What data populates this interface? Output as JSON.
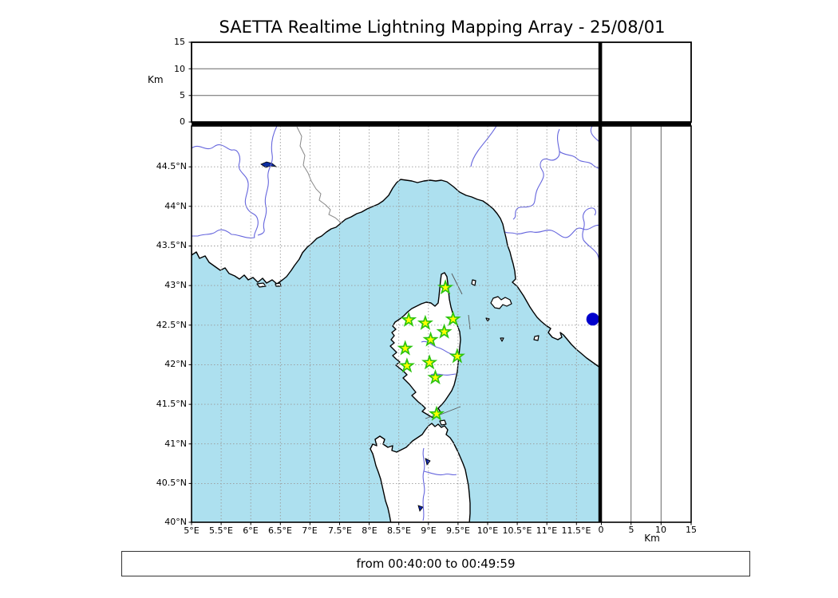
{
  "title": "SAETTA Realtime Lightning Mapping Array - 25/08/01",
  "time_label": "from 00:40:00 to 00:49:59",
  "axes": {
    "altitude_label_left": "Km",
    "altitude_label_right": "Km",
    "alt_ticks_desc": [
      "15",
      "10",
      "5",
      "0"
    ],
    "alt_ticks_asc": [
      "0",
      "5",
      "10",
      "15"
    ],
    "lon_ticks": [
      "5°E",
      "5.5°E",
      "6°E",
      "6.5°E",
      "7°E",
      "7.5°E",
      "8°E",
      "8.5°E",
      "9°E",
      "9.5°E",
      "10°E",
      "10.5°E",
      "11°E",
      "11.5°E"
    ],
    "lat_ticks": [
      "44.5°N",
      "44°N",
      "43.5°N",
      "43°N",
      "42.5°N",
      "42°N",
      "41.5°N",
      "41°N",
      "40.5°N",
      "40°N"
    ]
  },
  "chart_data": {
    "type": "scatter",
    "title": "SAETTA Realtime Lightning Mapping Array - 25/08/01",
    "time_window": "from 00:40:00 to 00:49:59",
    "layout": "map with longitude-altitude panel on top, latitude-altitude panel on right",
    "map_panel": {
      "lon_range": [
        5,
        11.9
      ],
      "lat_range": [
        40,
        45.0
      ],
      "grid_step_deg": 0.5,
      "grid_style": "dashed"
    },
    "altitude_panels": {
      "range_km": [
        0,
        15
      ],
      "gridlines_km": [
        5,
        10
      ]
    },
    "stations": [
      {
        "lon": 9.29,
        "lat": 42.97
      },
      {
        "lon": 8.67,
        "lat": 42.56
      },
      {
        "lon": 8.95,
        "lat": 42.52
      },
      {
        "lon": 9.42,
        "lat": 42.57
      },
      {
        "lon": 9.27,
        "lat": 42.41
      },
      {
        "lon": 9.04,
        "lat": 42.31
      },
      {
        "lon": 8.61,
        "lat": 42.2
      },
      {
        "lon": 9.49,
        "lat": 42.1
      },
      {
        "lon": 9.02,
        "lat": 42.02
      },
      {
        "lon": 8.64,
        "lat": 41.98
      },
      {
        "lon": 9.12,
        "lat": 41.83
      },
      {
        "lon": 9.14,
        "lat": 41.37
      }
    ],
    "events": [
      {
        "lon": 11.78,
        "lat": 42.57
      }
    ],
    "colors": {
      "sea": "#ade0ef",
      "land": "#ffffff",
      "coastline": "#000000",
      "river": "#6565dd",
      "border": "#888888",
      "grid": "#999999",
      "station_fill": "#ffff00",
      "station_edge": "#2cc40e",
      "event_dot": "#0000cc"
    }
  }
}
